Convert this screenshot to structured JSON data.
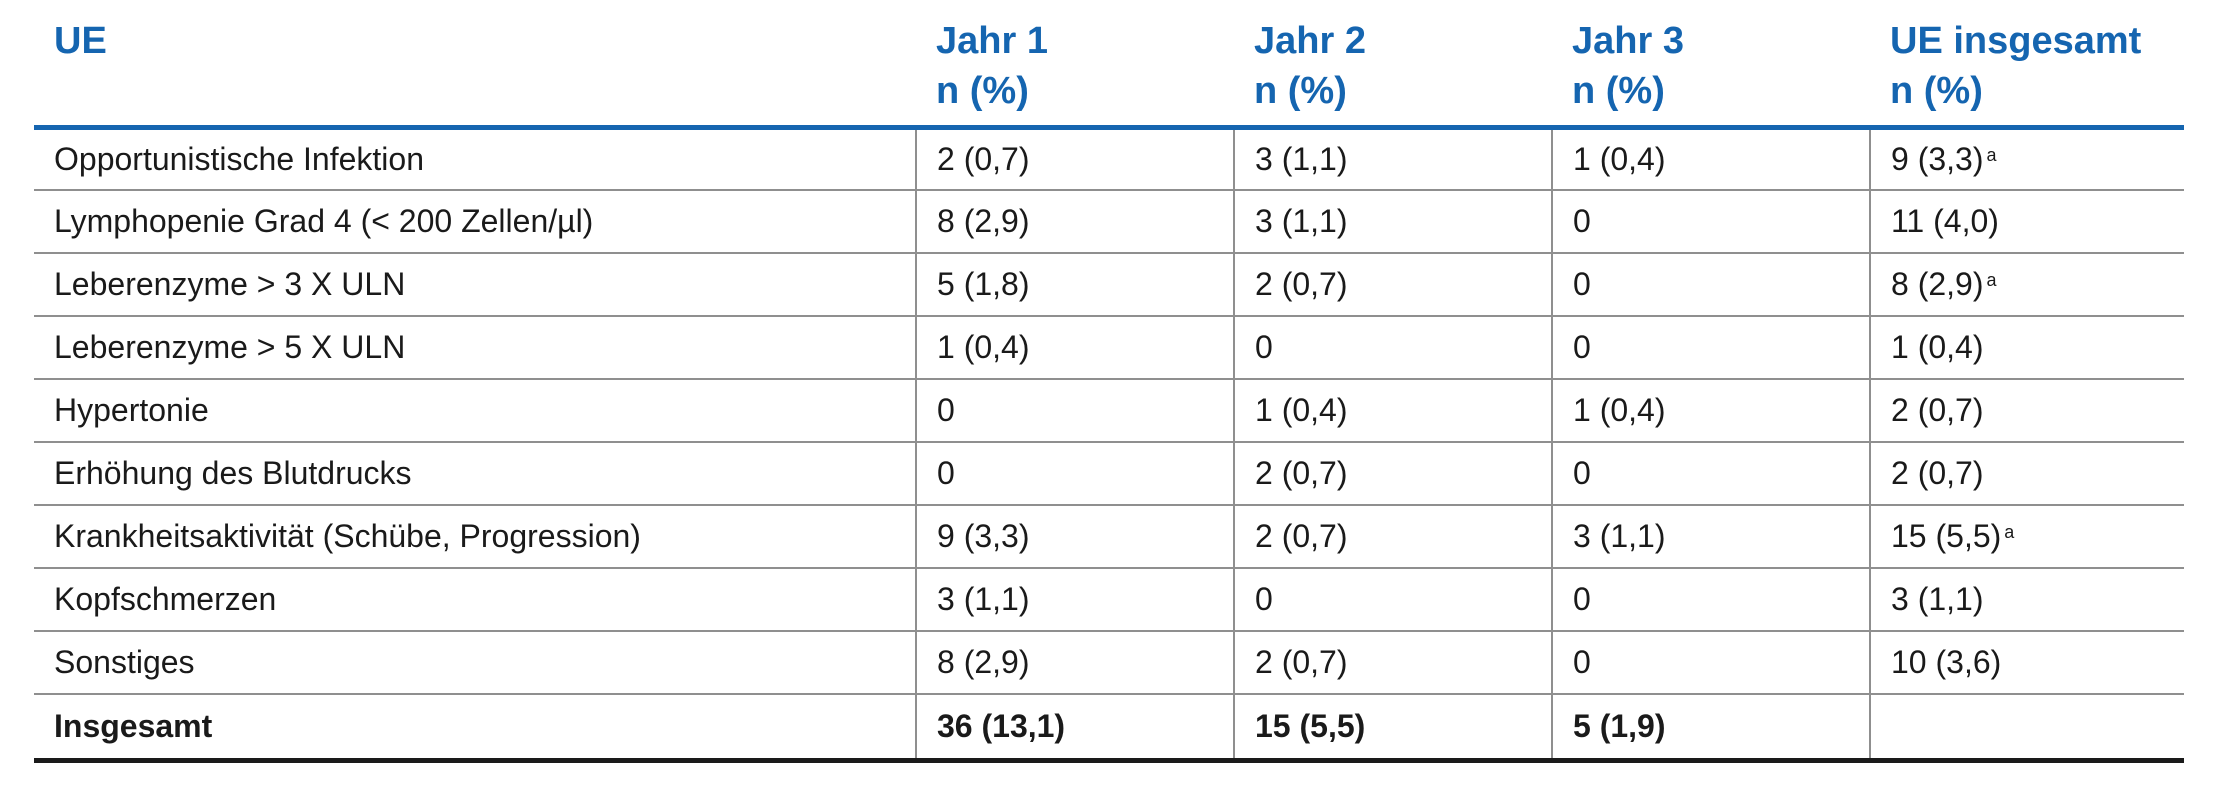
{
  "table": {
    "headers": [
      {
        "line1": "UE",
        "line2": ""
      },
      {
        "line1": "Jahr 1",
        "line2": "n (%)"
      },
      {
        "line1": "Jahr 2",
        "line2": "n (%)"
      },
      {
        "line1": "Jahr 3",
        "line2": "n (%)"
      },
      {
        "line1": "UE insgesamt",
        "line2": "n (%)"
      }
    ],
    "rows": [
      {
        "label": "Opportunistische Infektion",
        "y1": "2 (0,7)",
        "y2": "3 (1,1)",
        "y3": "1 (0,4)",
        "total": "9 (3,3)",
        "total_sup": "a"
      },
      {
        "label": "Lymphopenie Grad 4 (< 200 Zellen/µl)",
        "y1": "8 (2,9)",
        "y2": "3 (1,1)",
        "y3": "0",
        "total": "11 (4,0)",
        "total_sup": ""
      },
      {
        "label": "Leberenzyme > 3 X ULN",
        "y1": "5 (1,8)",
        "y2": "2 (0,7)",
        "y3": "0",
        "total": "8 (2,9)",
        "total_sup": "a"
      },
      {
        "label": "Leberenzyme > 5 X ULN",
        "y1": "1 (0,4)",
        "y2": "0",
        "y3": "0",
        "total": "1 (0,4)",
        "total_sup": ""
      },
      {
        "label": "Hypertonie",
        "y1": "0",
        "y2": "1 (0,4)",
        "y3": "1 (0,4)",
        "total": "2 (0,7)",
        "total_sup": ""
      },
      {
        "label": "Erhöhung des Blutdrucks",
        "y1": "0",
        "y2": "2 (0,7)",
        "y3": "0",
        "total": "2 (0,7)",
        "total_sup": ""
      },
      {
        "label": "Krankheitsaktivität (Schübe, Progression)",
        "y1": "9 (3,3)",
        "y2": "2 (0,7)",
        "y3": "3 (1,1)",
        "total": "15 (5,5)",
        "total_sup": "a"
      },
      {
        "label": "Kopfschmerzen",
        "y1": "3 (1,1)",
        "y2": "0",
        "y3": "0",
        "total": "3 (1,1)",
        "total_sup": ""
      },
      {
        "label": "Sonstiges",
        "y1": "8 (2,9)",
        "y2": "2 (0,7)",
        "y3": "0",
        "total": "10 (3,6)",
        "total_sup": ""
      }
    ],
    "total_row": {
      "label": "Insgesamt",
      "y1": "36 (13,1)",
      "y2": "15 (5,5)",
      "y3": "5 (1,9)",
      "total": ""
    }
  },
  "colors": {
    "header_text": "#1565b0",
    "header_rule": "#1565b0",
    "grid": "#8f8f8f",
    "bottom_rule": "#1a1a1a"
  }
}
